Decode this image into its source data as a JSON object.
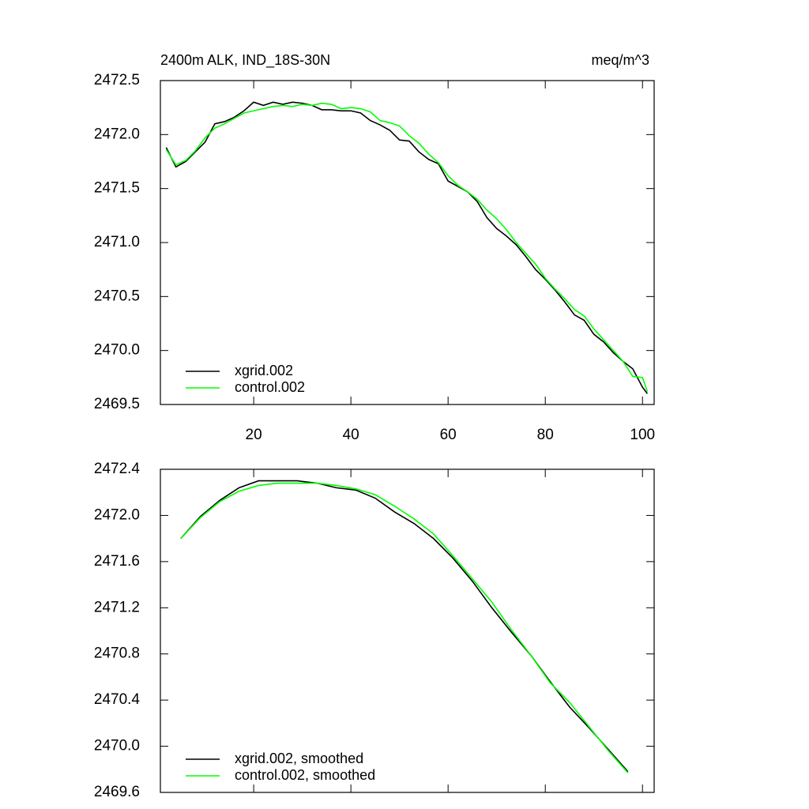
{
  "chart_data": [
    {
      "type": "line",
      "title": "2400m ALK, IND_18S-30N",
      "subtitle": "meq/m^3",
      "x": [
        2,
        4,
        6,
        8,
        10,
        12,
        14,
        16,
        18,
        20,
        22,
        24,
        26,
        28,
        30,
        32,
        34,
        36,
        38,
        40,
        42,
        44,
        46,
        48,
        50,
        52,
        54,
        56,
        58,
        60,
        62,
        64,
        66,
        68,
        70,
        72,
        74,
        76,
        78,
        80,
        82,
        84,
        86,
        88,
        90,
        92,
        94,
        96,
        98,
        100,
        101
      ],
      "series": [
        {
          "name": "xgrid.002",
          "color": "#000000",
          "values": [
            2471.88,
            2471.7,
            2471.75,
            2471.84,
            2471.93,
            2472.1,
            2472.12,
            2472.16,
            2472.22,
            2472.3,
            2472.27,
            2472.3,
            2472.28,
            2472.3,
            2472.29,
            2472.27,
            2472.23,
            2472.23,
            2472.22,
            2472.22,
            2472.2,
            2472.13,
            2472.09,
            2472.04,
            2471.95,
            2471.94,
            2471.84,
            2471.77,
            2471.73,
            2471.57,
            2471.52,
            2471.47,
            2471.38,
            2471.23,
            2471.13,
            2471.06,
            2470.98,
            2470.87,
            2470.75,
            2470.66,
            2470.56,
            2470.45,
            2470.33,
            2470.28,
            2470.15,
            2470.08,
            2469.98,
            2469.9,
            2469.83,
            2469.66,
            2469.6
          ]
        },
        {
          "name": "control.002",
          "color": "#00ff00",
          "values": [
            2471.86,
            2471.72,
            2471.76,
            2471.85,
            2471.97,
            2472.06,
            2472.1,
            2472.15,
            2472.2,
            2472.22,
            2472.24,
            2472.26,
            2472.27,
            2472.26,
            2472.28,
            2472.27,
            2472.29,
            2472.28,
            2472.24,
            2472.25,
            2472.24,
            2472.21,
            2472.13,
            2472.11,
            2472.08,
            2471.99,
            2471.92,
            2471.82,
            2471.74,
            2471.62,
            2471.53,
            2471.47,
            2471.4,
            2471.3,
            2471.22,
            2471.12,
            2471.0,
            2470.9,
            2470.8,
            2470.67,
            2470.57,
            2470.48,
            2470.38,
            2470.32,
            2470.2,
            2470.1,
            2470.0,
            2469.9,
            2469.76,
            2469.75,
            2469.62
          ]
        }
      ],
      "xlim": [
        0.8,
        102.4
      ],
      "xticks": [
        20,
        40,
        60,
        80,
        100
      ],
      "ylim": [
        2469.5,
        2472.5
      ],
      "yticks": [
        2469.5,
        {
          "value": 2470.0,
          "label": "2470.0"
        },
        2470.5,
        {
          "value": 2471.0,
          "label": "2471.0"
        },
        2471.5,
        {
          "value": 2472.0,
          "label": "2472.0"
        },
        2472.5
      ],
      "legend": "lower left"
    },
    {
      "type": "line",
      "x": [
        5,
        9,
        13,
        17,
        21,
        25,
        29,
        33,
        37,
        41,
        45,
        49,
        53,
        57,
        61,
        65,
        69,
        73,
        77,
        81,
        85,
        89,
        93,
        97
      ],
      "series": [
        {
          "name": "xgrid.002, smoothed",
          "color": "#000000",
          "values": [
            2471.8,
            2471.99,
            2472.13,
            2472.24,
            2472.3,
            2472.3,
            2472.3,
            2472.28,
            2472.24,
            2472.22,
            2472.15,
            2472.03,
            2471.93,
            2471.8,
            2471.63,
            2471.43,
            2471.2,
            2470.99,
            2470.79,
            2470.56,
            2470.34,
            2470.16,
            2469.97,
            2469.78
          ]
        },
        {
          "name": "control.002, smoothed",
          "color": "#00ff00",
          "values": [
            2471.8,
            2471.98,
            2472.12,
            2472.21,
            2472.26,
            2472.28,
            2472.28,
            2472.28,
            2472.26,
            2472.23,
            2472.18,
            2472.08,
            2471.97,
            2471.84,
            2471.65,
            2471.45,
            2471.25,
            2471.01,
            2470.79,
            2470.55,
            2470.38,
            2470.17,
            2469.96,
            2469.77
          ]
        }
      ],
      "xlim": [
        0.8,
        102.4
      ],
      "xticks": [
        20,
        40,
        60,
        80,
        100
      ],
      "ylim": [
        2469.6,
        2472.4
      ],
      "yticks": [
        2469.6,
        {
          "value": 2470.0,
          "label": "2470.0"
        },
        2470.4,
        2470.8,
        2471.2,
        2471.6,
        {
          "value": 2472.0,
          "label": "2472.0"
        },
        2472.4
      ],
      "legend": "lower left"
    }
  ]
}
